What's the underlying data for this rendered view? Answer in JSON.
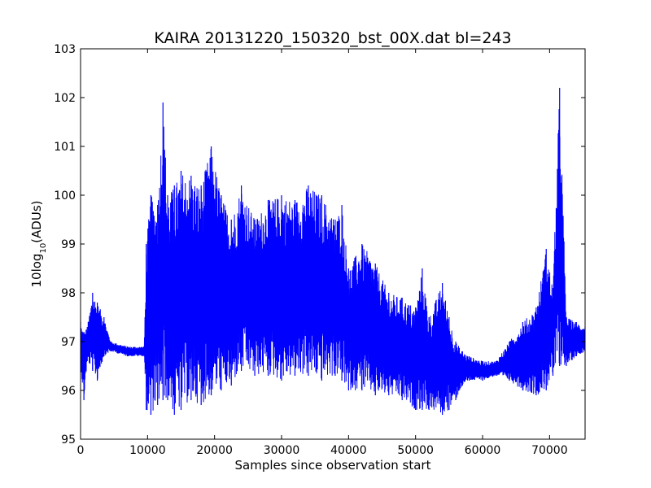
{
  "chart_data": {
    "type": "line",
    "title": "KAIRA   20131220_150320_bst_00X.dat   bl=243",
    "xlabel": "Samples since observation start",
    "ylabel": {
      "prefix": "10log",
      "sub": "10",
      "suffix": "(ADUs)"
    },
    "xlim": [
      0,
      75300
    ],
    "ylim": [
      95,
      103
    ],
    "xticks": [
      0,
      10000,
      20000,
      30000,
      40000,
      50000,
      60000,
      70000
    ],
    "xtick_labels": [
      "0",
      "10000",
      "20000",
      "30000",
      "40000",
      "50000",
      "60000",
      "70000"
    ],
    "yticks": [
      95,
      96,
      97,
      98,
      99,
      100,
      101,
      102,
      103
    ],
    "ytick_labels": [
      "95",
      "96",
      "97",
      "98",
      "99",
      "100",
      "101",
      "102",
      "103"
    ],
    "grid": false,
    "series": [
      {
        "color": "#0000ff",
        "envelope": {
          "x": [
            0,
            500,
            1000,
            1800,
            2500,
            3500,
            4500,
            7000,
            9500,
            9800,
            10500,
            11500,
            12300,
            13000,
            14000,
            15000,
            16500,
            18000,
            19500,
            21000,
            22500,
            24000,
            26000,
            28000,
            30000,
            32000,
            34000,
            36000,
            38000,
            39000,
            40000,
            42000,
            44000,
            46000,
            48000,
            50000,
            51000,
            52000,
            54000,
            55000,
            56000,
            57000,
            58000,
            60000,
            62000,
            64000,
            66000,
            68000,
            69500,
            70500,
            71500,
            72500,
            74000,
            75300
          ],
          "high": [
            97.4,
            97.2,
            97.3,
            98.0,
            97.8,
            97.5,
            97.0,
            96.9,
            96.9,
            99.0,
            100.0,
            99.8,
            101.9,
            100.0,
            100.2,
            100.5,
            100.4,
            100.2,
            101.0,
            100.0,
            99.5,
            100.2,
            99.5,
            99.9,
            100.0,
            99.9,
            100.2,
            100.0,
            99.5,
            99.8,
            98.5,
            99.0,
            98.6,
            98.0,
            97.9,
            97.7,
            98.5,
            97.5,
            98.2,
            97.5,
            97.0,
            96.8,
            96.7,
            96.6,
            96.6,
            97.0,
            97.4,
            97.7,
            98.9,
            98.1,
            102.2,
            97.5,
            97.4,
            97.3
          ],
          "low": [
            96.5,
            95.8,
            96.6,
            96.4,
            96.2,
            96.7,
            96.8,
            96.7,
            96.7,
            95.6,
            95.5,
            95.7,
            95.8,
            95.8,
            95.5,
            95.6,
            95.8,
            95.7,
            95.9,
            96.0,
            96.1,
            96.4,
            96.3,
            96.3,
            96.2,
            96.3,
            96.3,
            96.2,
            96.3,
            96.2,
            96.0,
            96.0,
            95.9,
            95.9,
            95.8,
            95.6,
            95.6,
            95.6,
            95.5,
            95.6,
            95.8,
            96.1,
            96.2,
            96.2,
            96.3,
            96.2,
            96.0,
            95.9,
            96.0,
            96.3,
            96.5,
            96.5,
            96.7,
            96.8
          ]
        }
      }
    ]
  }
}
